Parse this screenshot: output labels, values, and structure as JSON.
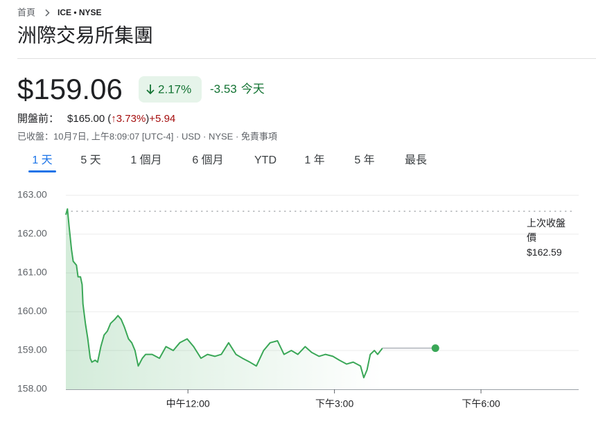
{
  "breadcrumb": {
    "home": "首頁",
    "ticker": "ICE • NYSE"
  },
  "company": "洲際交易所集團",
  "quote": {
    "price": "$159.06",
    "change_percent": "2.17%",
    "change": "-3.53",
    "period": "今天"
  },
  "premarket": {
    "label": "開盤前：",
    "price": "$165.00",
    "open_paren": "(",
    "percent": "↑3.73%",
    "close_paren": ")",
    "change": "+5.94"
  },
  "meta": "已收盤：10月7日, 上午8:09:07 [UTC-4] · USD · NYSE · 免責事項",
  "tabs": {
    "items": [
      "1 天",
      "5 天",
      "1 個月",
      "6 個月",
      "YTD",
      "1 年",
      "5 年",
      "最長"
    ],
    "selected": 0
  },
  "chart_data": {
    "type": "line",
    "color": "#3aa757",
    "x": [
      570,
      572,
      574,
      577,
      579,
      583,
      585,
      588,
      590,
      591,
      594,
      597,
      600,
      602,
      606,
      609,
      613,
      617,
      621,
      625,
      630,
      634,
      638,
      642,
      647,
      651,
      655,
      659,
      664,
      668,
      676,
      685,
      693,
      702,
      710,
      719,
      727,
      736,
      744,
      753,
      761,
      770,
      779,
      787,
      796,
      804,
      813,
      821,
      830,
      838,
      847,
      855,
      864,
      872,
      881,
      889,
      898,
      906,
      915,
      923,
      932,
      936,
      940,
      944,
      949,
      953,
      959
    ],
    "values": [
      162.5,
      162.65,
      162.2,
      161.6,
      161.3,
      161.2,
      160.9,
      160.9,
      160.7,
      160.2,
      159.7,
      159.3,
      158.8,
      158.7,
      158.75,
      158.7,
      159.1,
      159.4,
      159.5,
      159.7,
      159.8,
      159.9,
      159.8,
      159.6,
      159.3,
      159.2,
      159.0,
      158.6,
      158.8,
      158.9,
      158.9,
      158.8,
      159.1,
      159.0,
      159.2,
      159.3,
      159.1,
      158.8,
      158.9,
      158.85,
      158.9,
      159.2,
      158.9,
      158.8,
      158.7,
      158.6,
      159.0,
      159.2,
      159.25,
      158.9,
      159.0,
      158.9,
      159.1,
      158.95,
      158.85,
      158.9,
      158.85,
      158.75,
      158.65,
      158.7,
      158.6,
      158.3,
      158.5,
      158.9,
      159.0,
      158.9,
      159.06
    ],
    "close_point": {
      "x": 1024,
      "y": 159.06
    },
    "prev_close": {
      "value": 162.59,
      "label": "$162.59",
      "title": "上次收盤價"
    },
    "xlim": [
      570,
      1200
    ],
    "xticks": [
      {
        "value": 720,
        "label": "中午12:00"
      },
      {
        "value": 900,
        "label": "下午3:00"
      },
      {
        "value": 1080,
        "label": "下午6:00"
      }
    ],
    "ylim": [
      158,
      163
    ],
    "yticks": [
      {
        "value": 158,
        "label": "158.00"
      },
      {
        "value": 159,
        "label": "159.00"
      },
      {
        "value": 160,
        "label": "160.00"
      },
      {
        "value": 161,
        "label": "161.00"
      },
      {
        "value": 162,
        "label": "162.00"
      },
      {
        "value": 163,
        "label": "163.00"
      }
    ],
    "grid": true
  }
}
